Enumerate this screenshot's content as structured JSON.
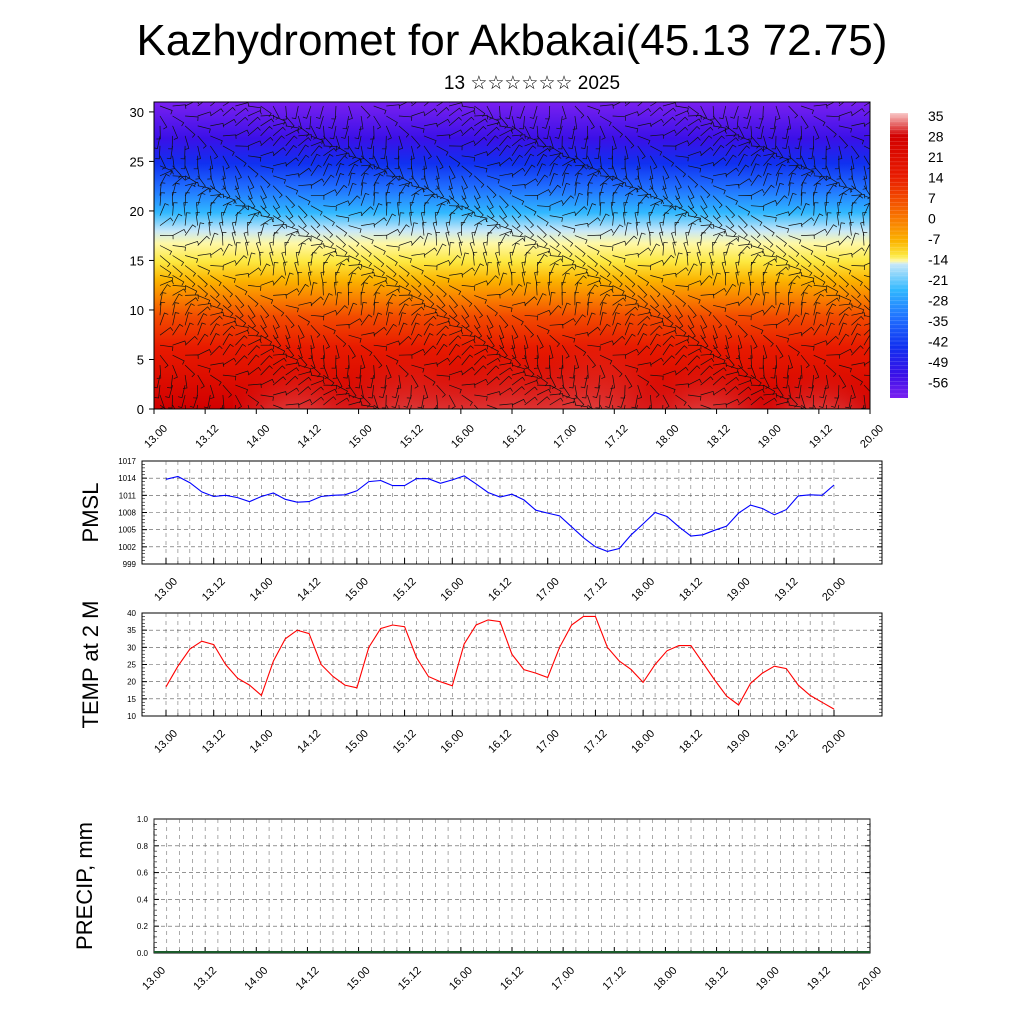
{
  "header": {
    "title": "Kazhydromet for Akbakai(45.13 72.75)",
    "subtitle": "13 ☆☆☆☆☆☆ 2025"
  },
  "time_labels": [
    "13.00",
    "13.12",
    "14.00",
    "14.12",
    "15.00",
    "15.12",
    "16.00",
    "16.12",
    "17.00",
    "17.12",
    "18.00",
    "18.12",
    "19.00",
    "19.12",
    "20.00"
  ],
  "chart_data": [
    {
      "type": "heatmap",
      "description_role": "temperature cross-section with wind barbs",
      "x": [
        "13.00",
        "13.12",
        "14.00",
        "14.12",
        "15.00",
        "15.12",
        "16.00",
        "16.12",
        "17.00",
        "17.12",
        "18.00",
        "18.12",
        "19.00",
        "19.12",
        "20.00"
      ],
      "ylim": [
        0,
        31
      ],
      "y_ticks": [
        0,
        5,
        10,
        15,
        20,
        25,
        30
      ],
      "colorbar": {
        "labels": [
          "35",
          "28",
          "21",
          "14",
          "7",
          "0",
          "-7",
          "-14",
          "-21",
          "-28",
          "-35",
          "-42",
          "-49",
          "-56"
        ],
        "colors": [
          "#f9b4b4",
          "#d20000",
          "#e81a00",
          "#f24a00",
          "#f98000",
          "#fbb400",
          "#fde840",
          "#fef8a8",
          "#c8e8f8",
          "#30b8ff",
          "#2070ff",
          "#1030f0",
          "#3a10e8",
          "#7a20f0"
        ]
      }
    },
    {
      "type": "line",
      "ylabel": "PMSL",
      "ylim": [
        999,
        1017
      ],
      "y_ticks": [
        999,
        1002,
        1005,
        1008,
        1011,
        1014,
        1017
      ],
      "color": "#0000ff",
      "series": [
        {
          "values": [
            1013.8,
            1014.3,
            1013.2,
            1011.6,
            1010.8,
            1011.0,
            1010.6,
            1009.9,
            1010.8,
            1011.4,
            1010.3,
            1009.8,
            1009.9,
            1010.8,
            1011.0,
            1011.1,
            1011.8,
            1013.4,
            1013.6,
            1012.7,
            1012.7,
            1013.9,
            1013.9,
            1013.1,
            1013.7,
            1014.4,
            1013.0,
            1011.5,
            1010.7,
            1011.2,
            1010.2,
            1008.4,
            1007.9,
            1007.4,
            1005.5,
            1003.6,
            1002.0,
            1001.2,
            1001.7,
            1004.1,
            1006.0,
            1008.0,
            1007.3,
            1005.5,
            1003.9,
            1004.1,
            1004.9,
            1005.6,
            1007.9,
            1009.3,
            1008.7,
            1007.6,
            1008.5,
            1010.9,
            1011.1,
            1011.0,
            1012.8
          ]
        }
      ]
    },
    {
      "type": "line",
      "ylabel": "TEMP at 2 M",
      "ylim": [
        10,
        40
      ],
      "y_ticks": [
        10,
        15,
        20,
        25,
        30,
        35,
        40
      ],
      "color": "#ff0000",
      "series": [
        {
          "values": [
            18.5,
            24.5,
            29.5,
            31.8,
            30.8,
            25.0,
            21.0,
            19.0,
            16.0,
            26.0,
            32.5,
            35.0,
            34.0,
            25.0,
            21.5,
            19.0,
            18.2,
            30.0,
            35.5,
            36.5,
            36.0,
            27.0,
            21.5,
            20.0,
            18.8,
            31.0,
            36.5,
            38.0,
            37.5,
            28.0,
            23.5,
            22.5,
            21.2,
            30.0,
            36.5,
            39.0,
            39.0,
            30.0,
            26.0,
            23.5,
            19.8,
            25.0,
            29.0,
            30.5,
            30.5,
            25.5,
            20.5,
            15.8,
            13.2,
            19.5,
            22.5,
            24.5,
            23.8,
            19.0,
            16.0,
            14.0,
            12.0
          ]
        }
      ]
    },
    {
      "type": "bar",
      "ylabel": "PRECIP, mm",
      "ylim": [
        0,
        1
      ],
      "y_ticks": [
        "0.0",
        "0.2",
        "0.4",
        "0.6",
        "0.8",
        "1.0"
      ],
      "values": []
    }
  ]
}
